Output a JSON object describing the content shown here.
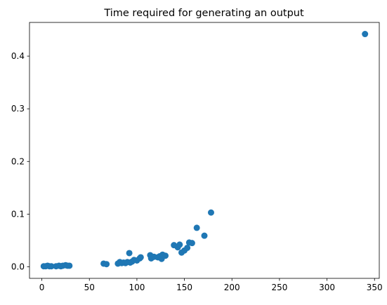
{
  "chart_data": {
    "type": "scatter",
    "title": "Time required for generating an output",
    "xlabel": "",
    "ylabel": "",
    "xlim": [
      -13,
      355
    ],
    "ylim": [
      -0.022,
      0.464
    ],
    "xticks": [
      0,
      50,
      100,
      150,
      200,
      250,
      300,
      350
    ],
    "yticks": [
      0.0,
      0.1,
      0.2,
      0.3,
      0.4
    ],
    "xtick_labels": [
      "0",
      "50",
      "100",
      "150",
      "200",
      "250",
      "300",
      "350"
    ],
    "ytick_labels": [
      "0.0",
      "0.1",
      "0.2",
      "0.3",
      "0.4"
    ],
    "grid": false,
    "marker_color": "#1f77b4",
    "series": [
      {
        "points": [
          [
            2,
            0.001
          ],
          [
            4,
            0.001
          ],
          [
            6,
            0.002
          ],
          [
            8,
            0.001
          ],
          [
            10,
            0.001
          ],
          [
            15,
            0.001
          ],
          [
            18,
            0.002
          ],
          [
            20,
            0.001
          ],
          [
            22,
            0.002
          ],
          [
            25,
            0.003
          ],
          [
            27,
            0.002
          ],
          [
            29,
            0.002
          ],
          [
            65,
            0.006
          ],
          [
            68,
            0.005
          ],
          [
            80,
            0.006
          ],
          [
            82,
            0.009
          ],
          [
            84,
            0.007
          ],
          [
            86,
            0.008
          ],
          [
            88,
            0.007
          ],
          [
            90,
            0.009
          ],
          [
            92,
            0.026
          ],
          [
            93,
            0.008
          ],
          [
            95,
            0.01
          ],
          [
            97,
            0.013
          ],
          [
            100,
            0.012
          ],
          [
            103,
            0.016
          ],
          [
            104,
            0.018
          ],
          [
            114,
            0.022
          ],
          [
            115,
            0.016
          ],
          [
            118,
            0.019
          ],
          [
            122,
            0.018
          ],
          [
            124,
            0.02
          ],
          [
            126,
            0.015
          ],
          [
            127,
            0.023
          ],
          [
            130,
            0.021
          ],
          [
            139,
            0.041
          ],
          [
            143,
            0.037
          ],
          [
            145,
            0.042
          ],
          [
            147,
            0.027
          ],
          [
            150,
            0.031
          ],
          [
            153,
            0.036
          ],
          [
            155,
            0.046
          ],
          [
            158,
            0.045
          ],
          [
            163,
            0.074
          ],
          [
            171,
            0.059
          ],
          [
            178,
            0.103
          ],
          [
            340,
            0.442
          ]
        ]
      }
    ]
  }
}
